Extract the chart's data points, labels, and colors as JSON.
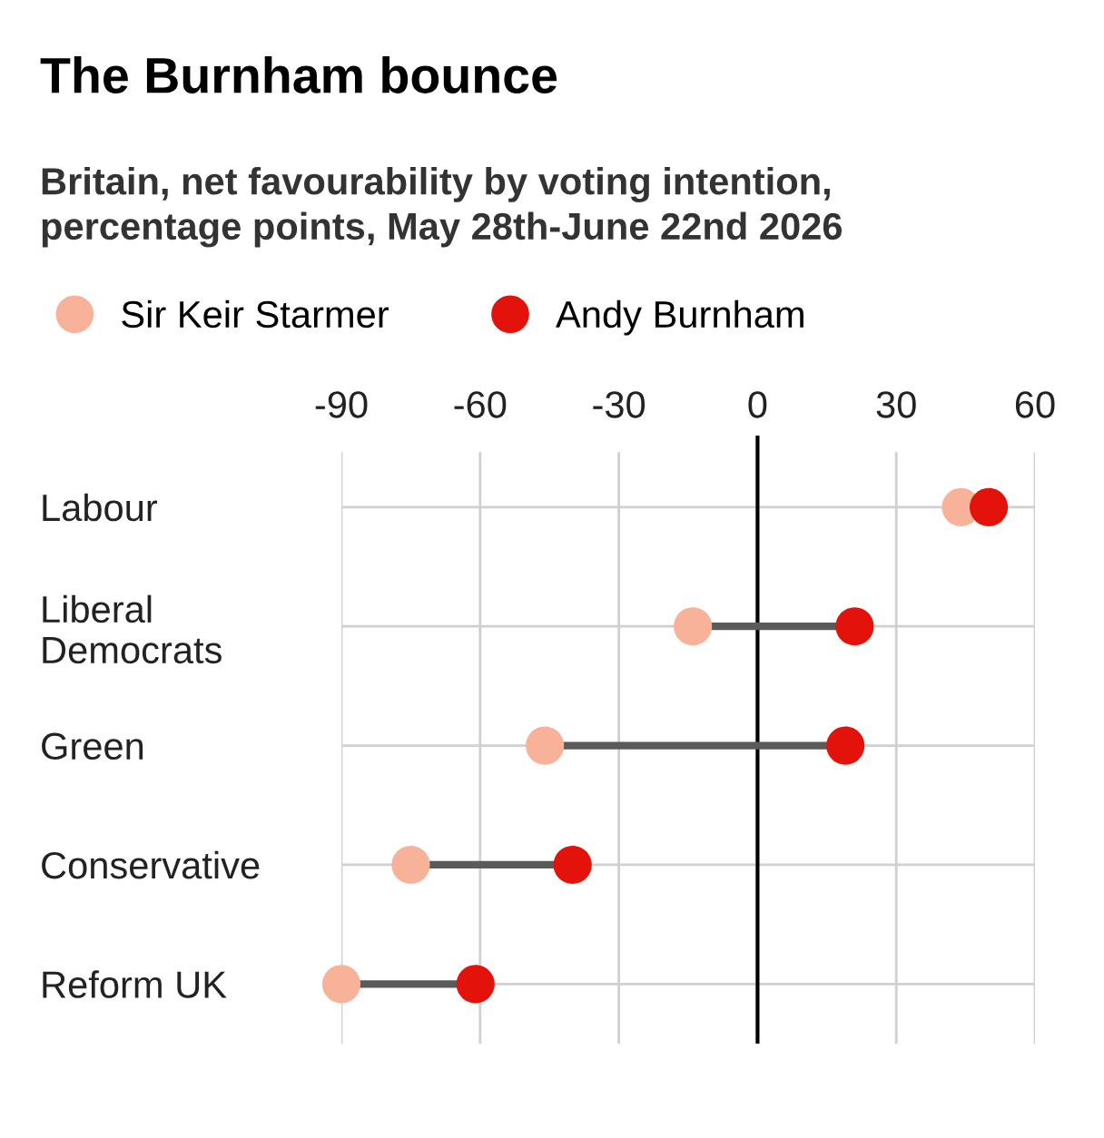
{
  "chart_data": {
    "type": "scatter",
    "title": "The Burnham bounce",
    "subtitle": "Britain, net favourability by voting intention,\npercentage points, May 28th-June 22nd 2026",
    "orientation": "horizontal",
    "categories": [
      "Labour",
      "Liberal\nDemocrats",
      "Green",
      "Conservative",
      "Reform UK"
    ],
    "series": [
      {
        "name": "Sir Keir Starmer",
        "color": "#f9b29a",
        "values": [
          44,
          -14,
          -46,
          -75,
          -90
        ]
      },
      {
        "name": "Andy Burnham",
        "color": "#e3120b",
        "values": [
          50,
          21,
          19,
          -40,
          -61
        ]
      }
    ],
    "xlim": [
      -90,
      60
    ],
    "xticks": [
      -90,
      -60,
      -30,
      0,
      30,
      60
    ],
    "ref_lines": [
      {
        "axis": "x",
        "value": 0,
        "color": "#000000"
      }
    ],
    "grid": true,
    "legend": "top left",
    "marker": "circle"
  }
}
